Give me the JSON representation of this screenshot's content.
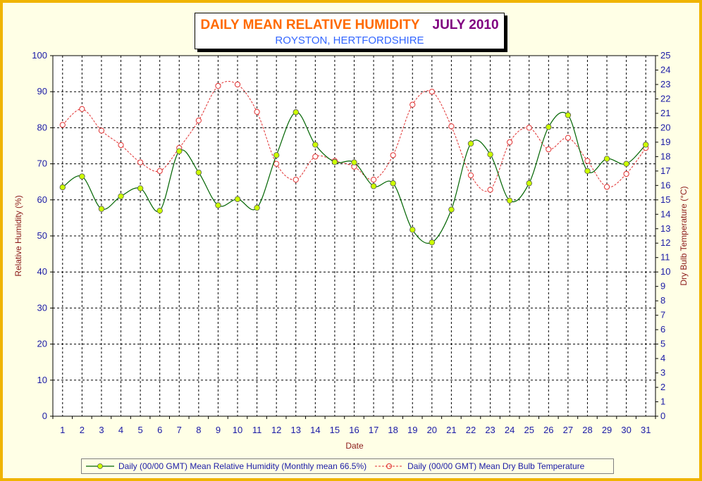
{
  "title": {
    "main": "DAILY MEAN RELATIVE HUMIDITY",
    "month": "JULY 2010",
    "subtitle": "ROYSTON, HERTFORDSHIRE"
  },
  "colors": {
    "frame_border": "#f0b400",
    "background": "#ffffe6",
    "humidity_line": "#006400",
    "humidity_marker": "#ccff00",
    "temperature_line": "#e03030",
    "tick_text": "#1a1aa6",
    "axis_title": "#8b1a1a"
  },
  "chart_data": {
    "type": "line",
    "xlabel": "Date",
    "ylabel": "Relative Humidity (%)",
    "y2label": "Dry Bulb Temperature (°C)",
    "ylim": [
      0,
      100
    ],
    "y2lim": [
      0,
      25
    ],
    "yticks": [
      0,
      10,
      20,
      30,
      40,
      50,
      60,
      70,
      80,
      90,
      100
    ],
    "y2ticks": [
      0,
      1,
      2,
      3,
      4,
      5,
      6,
      7,
      8,
      9,
      10,
      11,
      12,
      13,
      14,
      15,
      16,
      17,
      18,
      19,
      20,
      21,
      22,
      23,
      24,
      25
    ],
    "grid": true,
    "legend_position": "bottom",
    "x": [
      1,
      2,
      3,
      4,
      5,
      6,
      7,
      8,
      9,
      10,
      11,
      12,
      13,
      14,
      15,
      16,
      17,
      18,
      19,
      20,
      21,
      22,
      23,
      24,
      25,
      26,
      27,
      28,
      29,
      30,
      31
    ],
    "series": [
      {
        "name": "Daily (00/00 GMT) Mean Relative Humidity (Monthly mean 66.5%)",
        "axis": "left",
        "style": "solid",
        "values": [
          63.5,
          66.5,
          57.5,
          61.0,
          63.2,
          57.0,
          73.5,
          67.6,
          58.5,
          60.2,
          57.8,
          72.4,
          84.3,
          75.3,
          70.5,
          70.4,
          63.8,
          64.6,
          51.7,
          48.2,
          57.3,
          75.6,
          72.6,
          59.8,
          64.6,
          80.2,
          83.5,
          68.0,
          71.4,
          70.0,
          75.3
        ]
      },
      {
        "name": "Daily (00/00 GMT) Mean Dry Bulb Temperature",
        "axis": "right",
        "style": "dashed",
        "values": [
          20.2,
          21.3,
          19.8,
          18.8,
          17.6,
          17.0,
          18.6,
          20.5,
          22.9,
          23.0,
          21.1,
          17.5,
          16.4,
          18.0,
          17.7,
          17.3,
          16.4,
          18.1,
          21.6,
          22.5,
          20.1,
          16.7,
          15.7,
          19.0,
          20.0,
          18.5,
          19.3,
          17.7,
          15.9,
          16.8,
          18.6
        ]
      }
    ]
  },
  "legend": {
    "humidity": "Daily (00/00 GMT) Mean Relative Humidity (Monthly mean 66.5%)",
    "temperature": "Daily (00/00 GMT) Mean Dry Bulb Temperature"
  }
}
